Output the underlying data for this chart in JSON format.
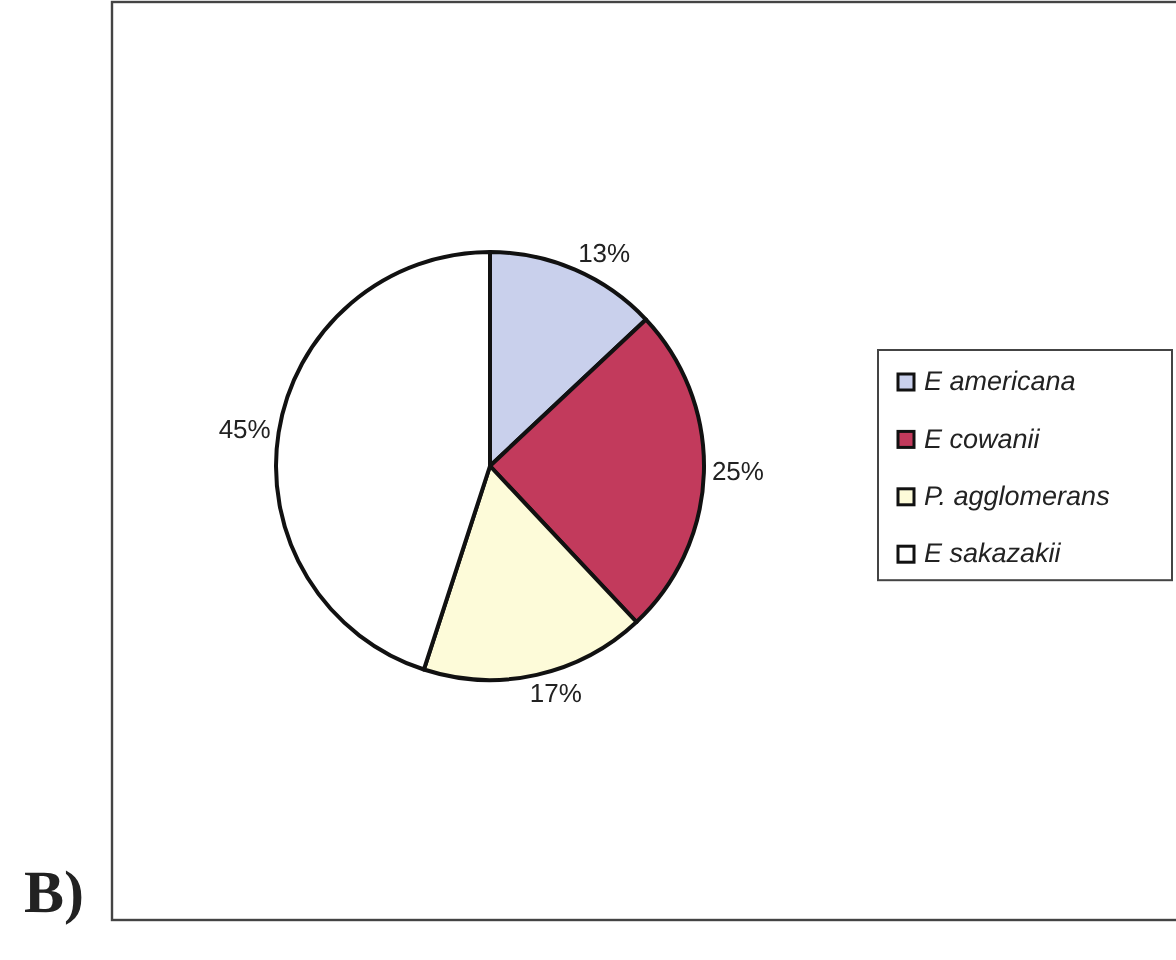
{
  "chart_data": {
    "type": "pie",
    "categories": [
      "E americana",
      "E cowanii",
      "P. agglomerans",
      "E sakazakii"
    ],
    "values": [
      13,
      25,
      17,
      45
    ],
    "colors": [
      "#c9d0ec",
      "#c23a5c",
      "#fdfbd9",
      "#ffffff"
    ],
    "value_labels": [
      "13%",
      "25%",
      "17%",
      "45%"
    ],
    "legend": "right",
    "annotations": [
      "B)"
    ]
  }
}
